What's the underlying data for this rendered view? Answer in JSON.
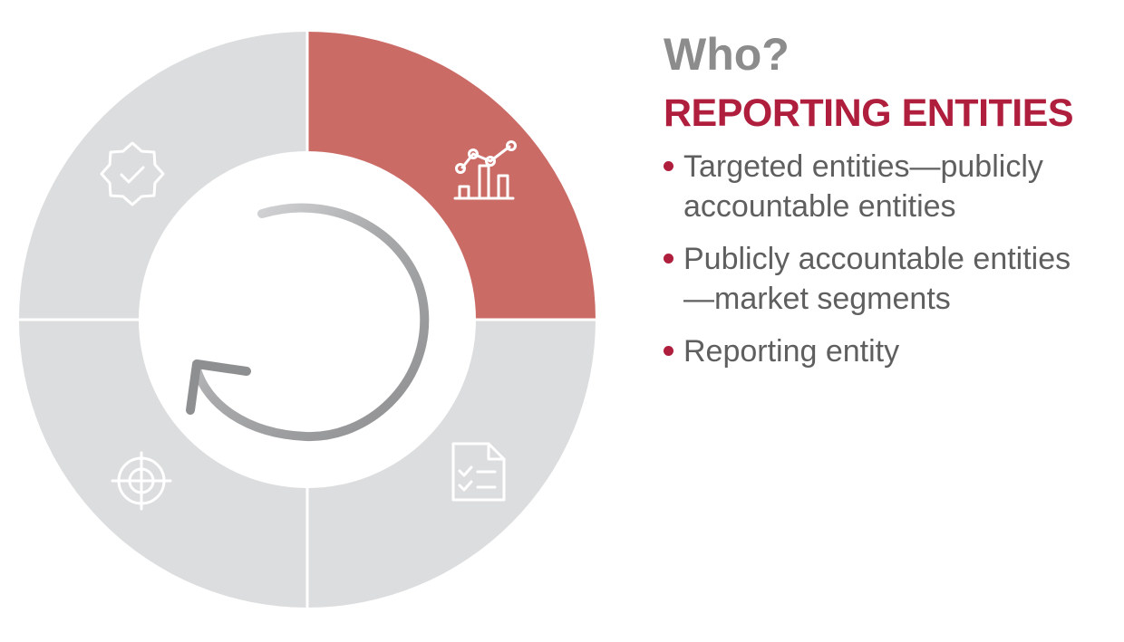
{
  "colors": {
    "accent": "#B01E3E",
    "active_segment": "#CB6B66",
    "inactive_segment": "#DCDDDE",
    "title_gray": "#8C8C8C",
    "text_gray": "#5F5F5F",
    "arrow_gray": "#8E8F91",
    "icon_stroke": "#FFFFFF"
  },
  "cycle": {
    "segments": [
      {
        "id": "reporting-entities",
        "icon": "chart-analytics-icon",
        "active": true
      },
      {
        "id": "requirements",
        "icon": "document-checklist-icon",
        "active": false
      },
      {
        "id": "objectives",
        "icon": "target-crosshair-icon",
        "active": false
      },
      {
        "id": "assurance",
        "icon": "badge-check-icon",
        "active": false
      }
    ],
    "center_icon": "circular-arrow-icon"
  },
  "panel": {
    "title": "Who?",
    "subtitle": "REPORTING ENTITIES",
    "bullets": [
      "Targeted entities—publicly accountable entities",
      "Publicly accountable entities —market segments",
      "Reporting entity"
    ]
  }
}
